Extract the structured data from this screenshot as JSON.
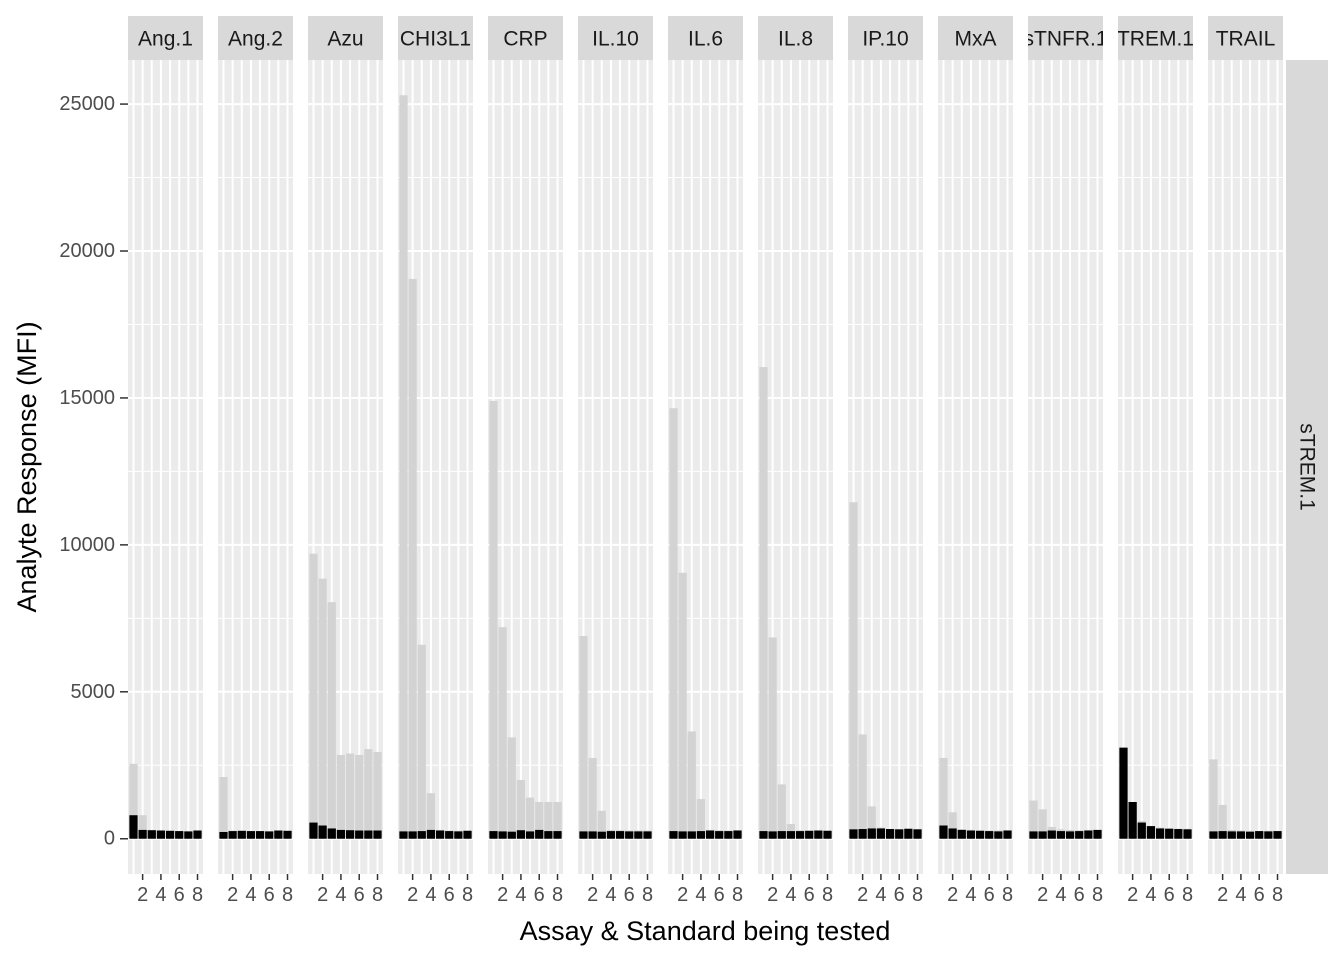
{
  "chart_data": {
    "type": "bar",
    "facet_row_label": "sTREM.1",
    "xlabel": "Assay & Standard being tested",
    "ylabel": "Analyte Response (MFI)",
    "ylim": [
      -1200,
      26500
    ],
    "yticks": [
      0,
      5000,
      10000,
      15000,
      20000,
      25000
    ],
    "x": [
      1,
      2,
      3,
      4,
      5,
      6,
      7,
      8
    ],
    "xticks": [
      2,
      4,
      6,
      8
    ],
    "grid": true,
    "colors": {
      "panel_bg": "#ebebeb",
      "strip_bg": "#d9d9d9",
      "grid": "#ffffff",
      "background_series": "#d3d3d3",
      "highlight_series": "#000000"
    },
    "panels": [
      {
        "label": "Ang.1",
        "background": [
          2550,
          800,
          300,
          280,
          270,
          260,
          250,
          260
        ],
        "highlight": [
          800,
          300,
          290,
          280,
          270,
          260,
          250,
          280
        ]
      },
      {
        "label": "Ang.2",
        "background": [
          2100,
          280,
          270,
          260,
          260,
          250,
          260,
          260
        ],
        "highlight": [
          230,
          260,
          270,
          260,
          260,
          250,
          280,
          270
        ]
      },
      {
        "label": "Azu",
        "background": [
          9700,
          8850,
          8050,
          2850,
          2900,
          2850,
          3050,
          2950
        ],
        "highlight": [
          550,
          450,
          350,
          300,
          290,
          280,
          280,
          280
        ]
      },
      {
        "label": "CHI3L1",
        "background": [
          25300,
          19050,
          6600,
          1550,
          300,
          280,
          270,
          280
        ],
        "highlight": [
          250,
          250,
          260,
          300,
          280,
          260,
          250,
          270
        ]
      },
      {
        "label": "CRP",
        "background": [
          14900,
          7200,
          3450,
          2000,
          1400,
          1250,
          1250,
          1250
        ],
        "highlight": [
          260,
          250,
          240,
          290,
          250,
          300,
          260,
          260
        ]
      },
      {
        "label": "IL.10",
        "background": [
          6900,
          2750,
          950,
          300,
          290,
          280,
          280,
          280
        ],
        "highlight": [
          250,
          250,
          240,
          260,
          260,
          250,
          250,
          250
        ]
      },
      {
        "label": "IL.6",
        "background": [
          14650,
          9050,
          3650,
          1350,
          300,
          290,
          280,
          290
        ],
        "highlight": [
          260,
          250,
          250,
          260,
          280,
          260,
          260,
          280
        ]
      },
      {
        "label": "IL.8",
        "background": [
          16050,
          6850,
          1850,
          500,
          290,
          280,
          280,
          280
        ],
        "highlight": [
          260,
          250,
          260,
          260,
          260,
          270,
          280,
          270
        ]
      },
      {
        "label": "IP.10",
        "background": [
          11450,
          3550,
          1100,
          380,
          330,
          330,
          330,
          330
        ],
        "highlight": [
          320,
          330,
          350,
          350,
          330,
          320,
          340,
          320
        ]
      },
      {
        "label": "MxA",
        "background": [
          2750,
          900,
          330,
          300,
          290,
          280,
          280,
          290
        ],
        "highlight": [
          450,
          350,
          300,
          280,
          270,
          260,
          250,
          280
        ]
      },
      {
        "label": "sTNFR.1",
        "background": [
          1300,
          1000,
          400,
          320,
          300,
          290,
          300,
          300
        ],
        "highlight": [
          250,
          250,
          280,
          260,
          250,
          260,
          280,
          300
        ]
      },
      {
        "label": "TREM.1",
        "background": [
          3100,
          1250,
          600,
          430,
          380,
          360,
          340,
          340
        ],
        "highlight": [
          3100,
          1250,
          550,
          430,
          350,
          340,
          330,
          320
        ]
      },
      {
        "label": "TRAIL",
        "background": [
          2700,
          1150,
          300,
          280,
          270,
          260,
          270,
          270
        ],
        "highlight": [
          250,
          260,
          250,
          250,
          240,
          260,
          250,
          260
        ]
      }
    ]
  }
}
